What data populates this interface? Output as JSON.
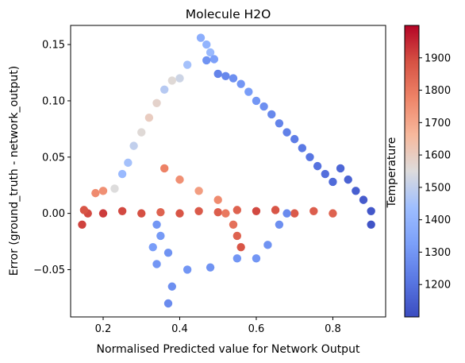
{
  "chart_data": {
    "type": "scatter",
    "title": "Molecule H2O",
    "xlabel": "Normalised Predicted value for Network Output",
    "ylabel": "Error (ground_truth - network_output)",
    "xlim": [
      0.115,
      0.938
    ],
    "ylim": [
      -0.092,
      0.167
    ],
    "xticks": [
      0.2,
      0.4,
      0.6,
      0.8
    ],
    "yticks": [
      -0.05,
      0.0,
      0.05,
      0.1,
      0.15
    ],
    "xtick_labels": [
      "0.2",
      "0.4",
      "0.6",
      "0.8"
    ],
    "ytick_labels": [
      "−0.05",
      "0.00",
      "0.05",
      "0.10",
      "0.15"
    ],
    "grid": false,
    "colormap": "coolwarm",
    "colorbar": {
      "label": "Temperature",
      "range": [
        1100,
        2000
      ],
      "ticks": [
        1200,
        1300,
        1400,
        1500,
        1600,
        1700,
        1800,
        1900
      ],
      "tick_labels": [
        "1200",
        "1300",
        "1400",
        "1500",
        "1600",
        "1700",
        "1800",
        "1900"
      ]
    },
    "points": [
      {
        "x": 0.455,
        "y": 0.156,
        "t": 1380
      },
      {
        "x": 0.47,
        "y": 0.15,
        "t": 1400
      },
      {
        "x": 0.48,
        "y": 0.143,
        "t": 1420
      },
      {
        "x": 0.49,
        "y": 0.137,
        "t": 1330
      },
      {
        "x": 0.47,
        "y": 0.136,
        "t": 1290
      },
      {
        "x": 0.5,
        "y": 0.124,
        "t": 1250
      },
      {
        "x": 0.52,
        "y": 0.122,
        "t": 1260
      },
      {
        "x": 0.54,
        "y": 0.12,
        "t": 1280
      },
      {
        "x": 0.56,
        "y": 0.115,
        "t": 1300
      },
      {
        "x": 0.58,
        "y": 0.108,
        "t": 1320
      },
      {
        "x": 0.6,
        "y": 0.1,
        "t": 1300
      },
      {
        "x": 0.62,
        "y": 0.095,
        "t": 1280
      },
      {
        "x": 0.64,
        "y": 0.088,
        "t": 1260
      },
      {
        "x": 0.66,
        "y": 0.08,
        "t": 1250
      },
      {
        "x": 0.68,
        "y": 0.072,
        "t": 1240
      },
      {
        "x": 0.7,
        "y": 0.066,
        "t": 1230
      },
      {
        "x": 0.72,
        "y": 0.058,
        "t": 1220
      },
      {
        "x": 0.74,
        "y": 0.05,
        "t": 1210
      },
      {
        "x": 0.76,
        "y": 0.042,
        "t": 1200
      },
      {
        "x": 0.78,
        "y": 0.035,
        "t": 1190
      },
      {
        "x": 0.8,
        "y": 0.028,
        "t": 1180
      },
      {
        "x": 0.82,
        "y": 0.04,
        "t": 1170
      },
      {
        "x": 0.84,
        "y": 0.03,
        "t": 1160
      },
      {
        "x": 0.86,
        "y": 0.02,
        "t": 1150
      },
      {
        "x": 0.88,
        "y": 0.012,
        "t": 1140
      },
      {
        "x": 0.9,
        "y": 0.002,
        "t": 1130
      },
      {
        "x": 0.9,
        "y": -0.01,
        "t": 1120
      },
      {
        "x": 0.42,
        "y": 0.132,
        "t": 1450
      },
      {
        "x": 0.4,
        "y": 0.12,
        "t": 1520
      },
      {
        "x": 0.38,
        "y": 0.118,
        "t": 1560
      },
      {
        "x": 0.36,
        "y": 0.11,
        "t": 1480
      },
      {
        "x": 0.34,
        "y": 0.098,
        "t": 1580
      },
      {
        "x": 0.32,
        "y": 0.085,
        "t": 1600
      },
      {
        "x": 0.3,
        "y": 0.072,
        "t": 1560
      },
      {
        "x": 0.28,
        "y": 0.06,
        "t": 1500
      },
      {
        "x": 0.265,
        "y": 0.045,
        "t": 1450
      },
      {
        "x": 0.25,
        "y": 0.035,
        "t": 1420
      },
      {
        "x": 0.23,
        "y": 0.022,
        "t": 1550
      },
      {
        "x": 0.2,
        "y": 0.02,
        "t": 1750
      },
      {
        "x": 0.18,
        "y": 0.018,
        "t": 1760
      },
      {
        "x": 0.16,
        "y": 0.0,
        "t": 1900
      },
      {
        "x": 0.145,
        "y": -0.01,
        "t": 1910
      },
      {
        "x": 0.15,
        "y": 0.003,
        "t": 1880
      },
      {
        "x": 0.2,
        "y": 0.0,
        "t": 1920
      },
      {
        "x": 0.25,
        "y": 0.002,
        "t": 1900
      },
      {
        "x": 0.3,
        "y": 0.0,
        "t": 1890
      },
      {
        "x": 0.35,
        "y": 0.001,
        "t": 1850
      },
      {
        "x": 0.4,
        "y": 0.0,
        "t": 1880
      },
      {
        "x": 0.45,
        "y": 0.002,
        "t": 1870
      },
      {
        "x": 0.5,
        "y": 0.001,
        "t": 1860
      },
      {
        "x": 0.55,
        "y": 0.003,
        "t": 1850
      },
      {
        "x": 0.6,
        "y": 0.002,
        "t": 1900
      },
      {
        "x": 0.65,
        "y": 0.003,
        "t": 1880
      },
      {
        "x": 0.7,
        "y": 0.0,
        "t": 1870
      },
      {
        "x": 0.75,
        "y": 0.002,
        "t": 1860
      },
      {
        "x": 0.8,
        "y": 0.0,
        "t": 1850
      },
      {
        "x": 0.36,
        "y": 0.04,
        "t": 1780
      },
      {
        "x": 0.4,
        "y": 0.03,
        "t": 1750
      },
      {
        "x": 0.45,
        "y": 0.02,
        "t": 1720
      },
      {
        "x": 0.5,
        "y": 0.012,
        "t": 1760
      },
      {
        "x": 0.52,
        "y": 0.0,
        "t": 1800
      },
      {
        "x": 0.54,
        "y": -0.01,
        "t": 1820
      },
      {
        "x": 0.55,
        "y": -0.02,
        "t": 1850
      },
      {
        "x": 0.56,
        "y": -0.03,
        "t": 1880
      },
      {
        "x": 0.34,
        "y": -0.01,
        "t": 1300
      },
      {
        "x": 0.35,
        "y": -0.02,
        "t": 1310
      },
      {
        "x": 0.33,
        "y": -0.03,
        "t": 1320
      },
      {
        "x": 0.34,
        "y": -0.045,
        "t": 1300
      },
      {
        "x": 0.37,
        "y": -0.035,
        "t": 1290
      },
      {
        "x": 0.38,
        "y": -0.065,
        "t": 1280
      },
      {
        "x": 0.37,
        "y": -0.08,
        "t": 1270
      },
      {
        "x": 0.42,
        "y": -0.05,
        "t": 1300
      },
      {
        "x": 0.48,
        "y": -0.048,
        "t": 1290
      },
      {
        "x": 0.55,
        "y": -0.04,
        "t": 1300
      },
      {
        "x": 0.6,
        "y": -0.04,
        "t": 1300
      },
      {
        "x": 0.63,
        "y": -0.028,
        "t": 1290
      },
      {
        "x": 0.66,
        "y": -0.01,
        "t": 1280
      },
      {
        "x": 0.68,
        "y": 0.0,
        "t": 1270
      }
    ]
  }
}
